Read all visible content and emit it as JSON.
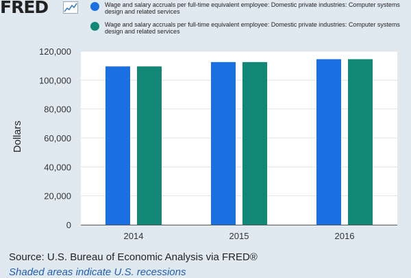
{
  "logo": {
    "text": "FRED",
    "icon": "line-chart-icon"
  },
  "footer": {
    "source": "Source: U.S. Bureau of Economic Analysis via FRED®",
    "recession_note": "Shaded areas indicate U.S. recessions"
  },
  "chart_data": {
    "type": "bar",
    "categories": [
      "2014",
      "2015",
      "2016"
    ],
    "series": [
      {
        "name": "Wage and salary accruals per full-time equivalent employee: Domestic private industries: Computer systems design and related services",
        "color": "#1a70e0",
        "values": [
          109500,
          112500,
          114500
        ]
      },
      {
        "name": "Wage and salary accruals per full-time equivalent employee: Domestic private industries: Computer systems design and related services",
        "color": "#128776",
        "values": [
          109500,
          112500,
          114500
        ]
      }
    ],
    "ylabel": "Dollars",
    "ylim": [
      0,
      120000
    ],
    "yticks": [
      "0",
      "20,000",
      "40,000",
      "60,000",
      "80,000",
      "100,000",
      "120,000"
    ],
    "grid": true,
    "legend_position": "top"
  }
}
